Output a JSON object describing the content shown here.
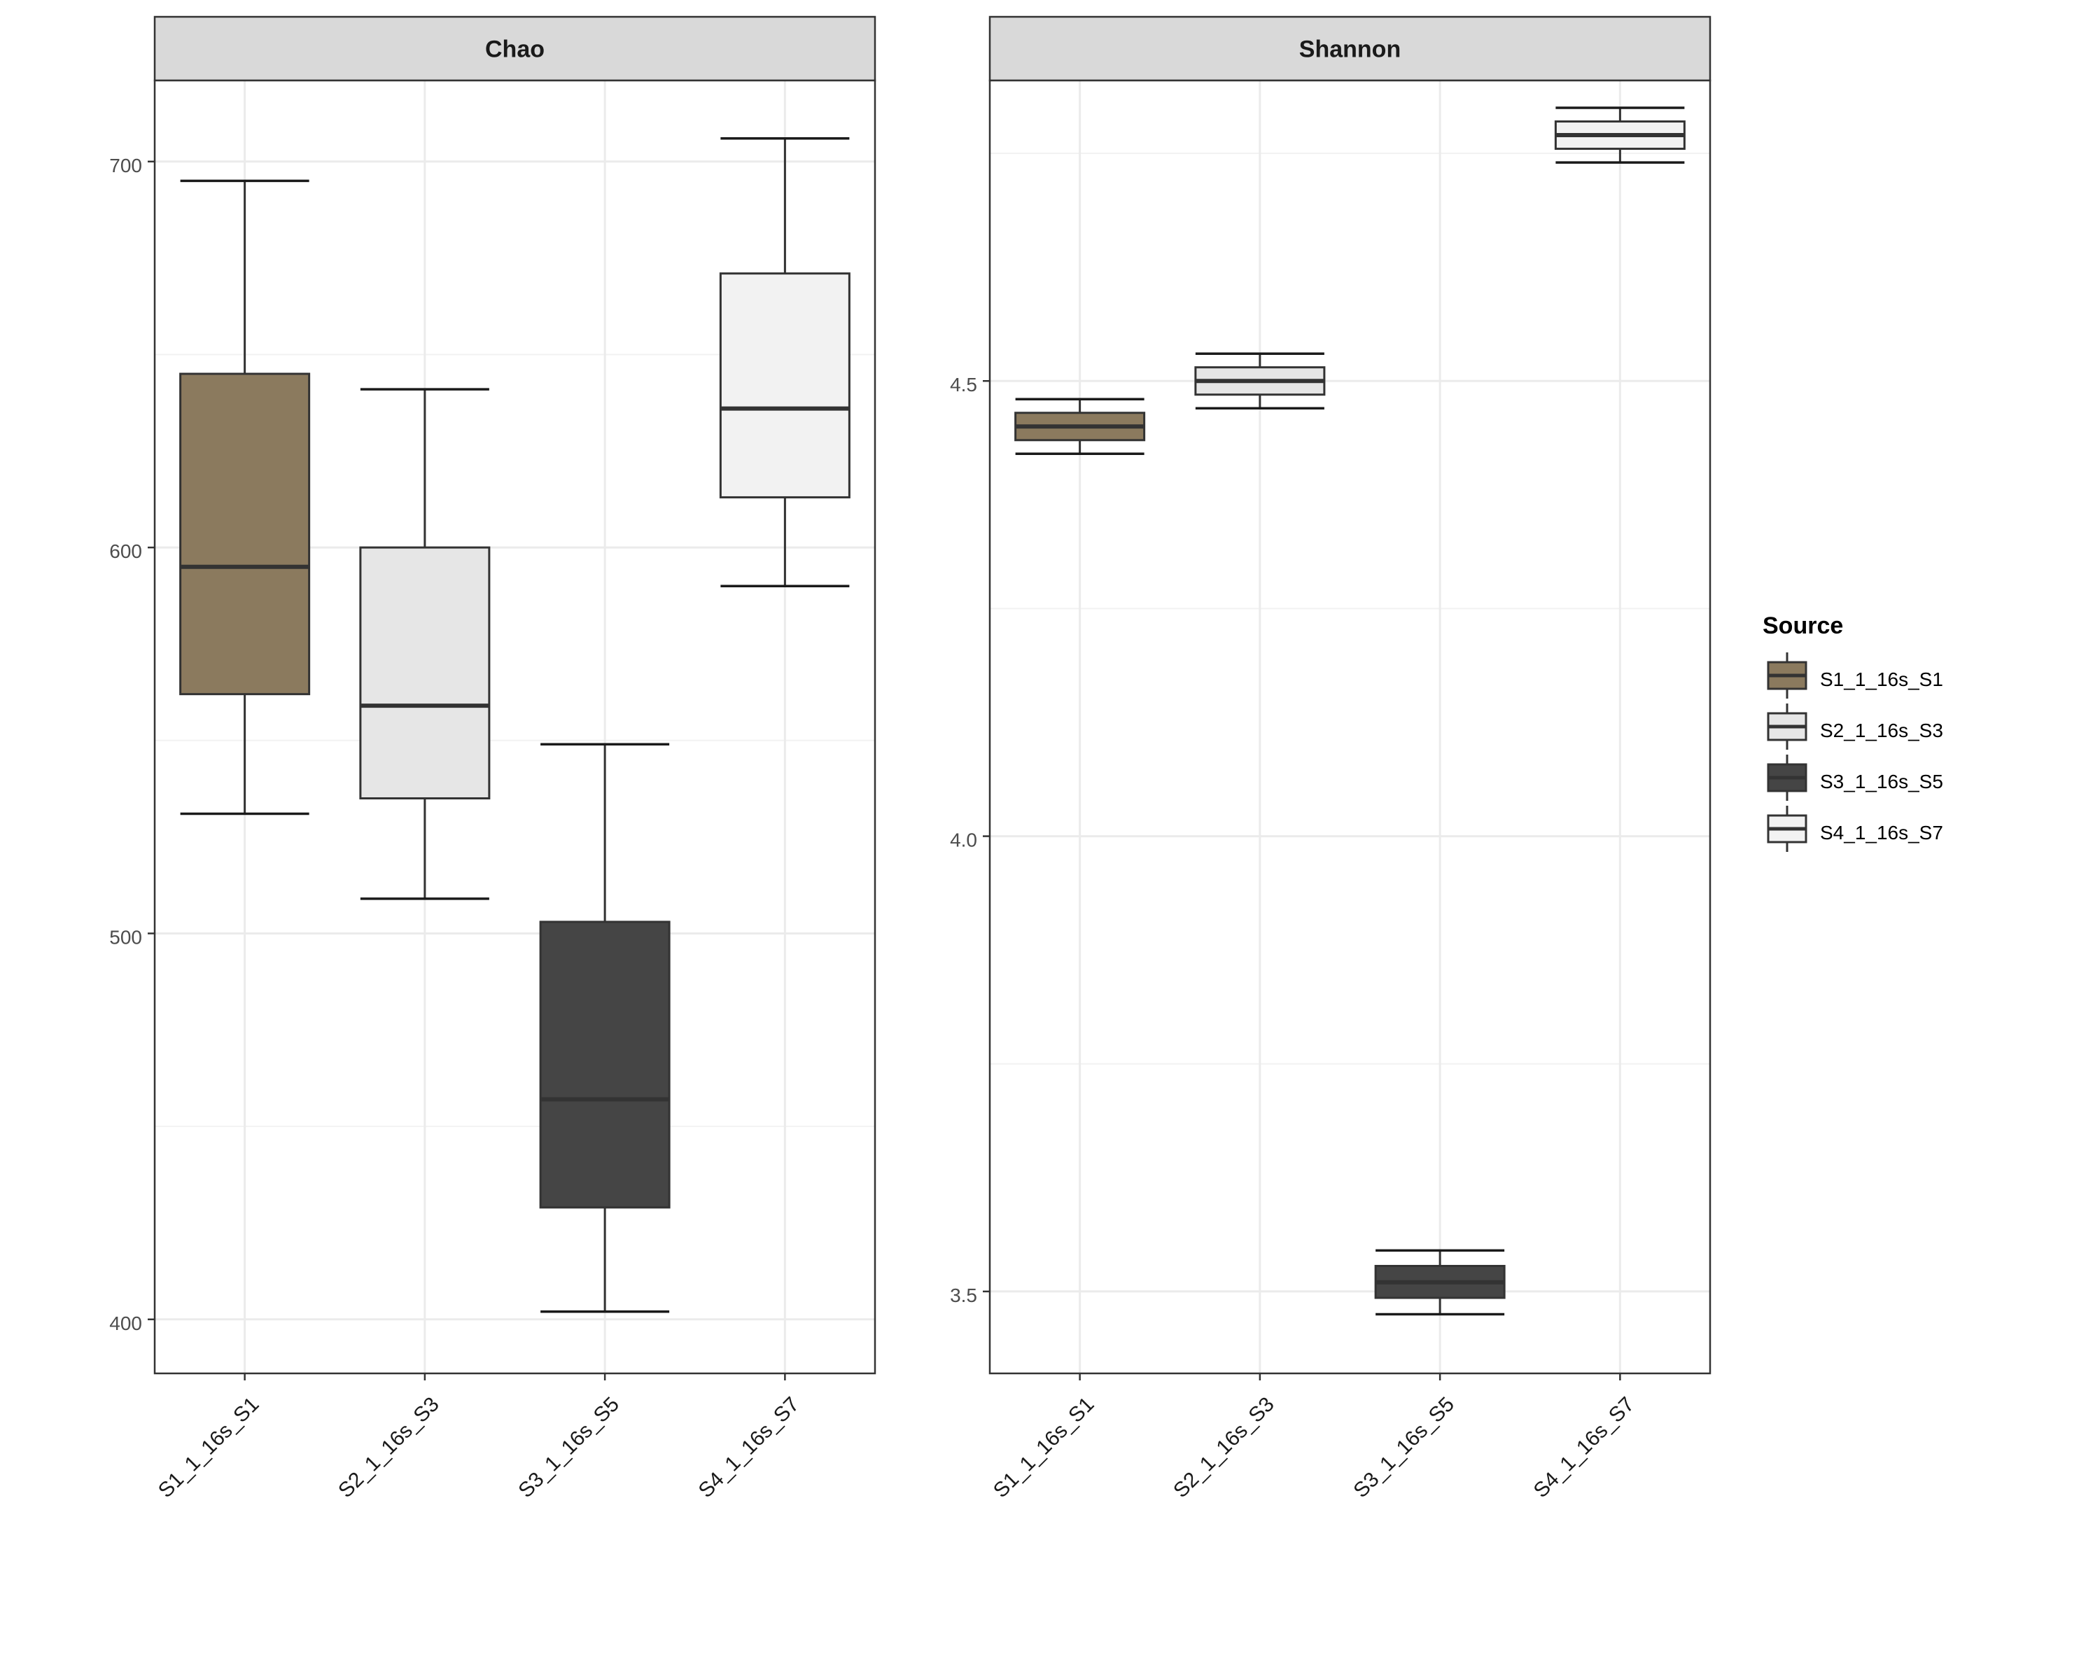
{
  "chart_data": {
    "type": "box",
    "categories": [
      "S1_1_16s_S1",
      "S2_1_16s_S3",
      "S3_1_16s_S5",
      "S4_1_16s_S7"
    ],
    "legend": {
      "title": "Source",
      "position": "right",
      "entries": [
        {
          "label": "S1_1_16s_S1",
          "color": "#8B7A5E"
        },
        {
          "label": "S2_1_16s_S3",
          "color": "#E6E6E6"
        },
        {
          "label": "S3_1_16s_S5",
          "color": "#454545"
        },
        {
          "label": "S4_1_16s_S7",
          "color": "#F2F2F2"
        }
      ]
    },
    "panels": [
      {
        "title": "Chao",
        "ylim": [
          386,
          721
        ],
        "yticks": [
          400,
          500,
          600,
          700
        ],
        "ytick_labels": [
          "400",
          "500",
          "600",
          "700"
        ],
        "minor_yticks": [
          450,
          550,
          650
        ],
        "grid": true,
        "boxes": [
          {
            "category": "S1_1_16s_S1",
            "min": 531,
            "q1": 562,
            "median": 595,
            "q3": 645,
            "max": 695
          },
          {
            "category": "S2_1_16s_S3",
            "min": 509,
            "q1": 535,
            "median": 559,
            "q3": 600,
            "max": 641
          },
          {
            "category": "S3_1_16s_S5",
            "min": 402,
            "q1": 429,
            "median": 457,
            "q3": 503,
            "max": 549
          },
          {
            "category": "S4_1_16s_S7",
            "min": 590,
            "q1": 613,
            "median": 636,
            "q3": 671,
            "max": 706
          }
        ]
      },
      {
        "title": "Shannon",
        "ylim": [
          3.41,
          4.83
        ],
        "yticks": [
          3.5,
          4.0,
          4.5
        ],
        "ytick_labels": [
          "3.5",
          "4.0",
          "4.5"
        ],
        "minor_yticks": [
          3.75,
          4.25,
          4.75
        ],
        "grid": true,
        "boxes": [
          {
            "category": "S1_1_16s_S1",
            "min": 4.42,
            "q1": 4.435,
            "median": 4.45,
            "q3": 4.465,
            "max": 4.48
          },
          {
            "category": "S2_1_16s_S3",
            "min": 4.47,
            "q1": 4.485,
            "median": 4.5,
            "q3": 4.515,
            "max": 4.53
          },
          {
            "category": "S3_1_16s_S5",
            "min": 3.475,
            "q1": 3.493,
            "median": 3.51,
            "q3": 3.528,
            "max": 3.545
          },
          {
            "category": "S4_1_16s_S7",
            "min": 4.74,
            "q1": 4.755,
            "median": 4.77,
            "q3": 4.785,
            "max": 4.8
          }
        ]
      }
    ]
  }
}
